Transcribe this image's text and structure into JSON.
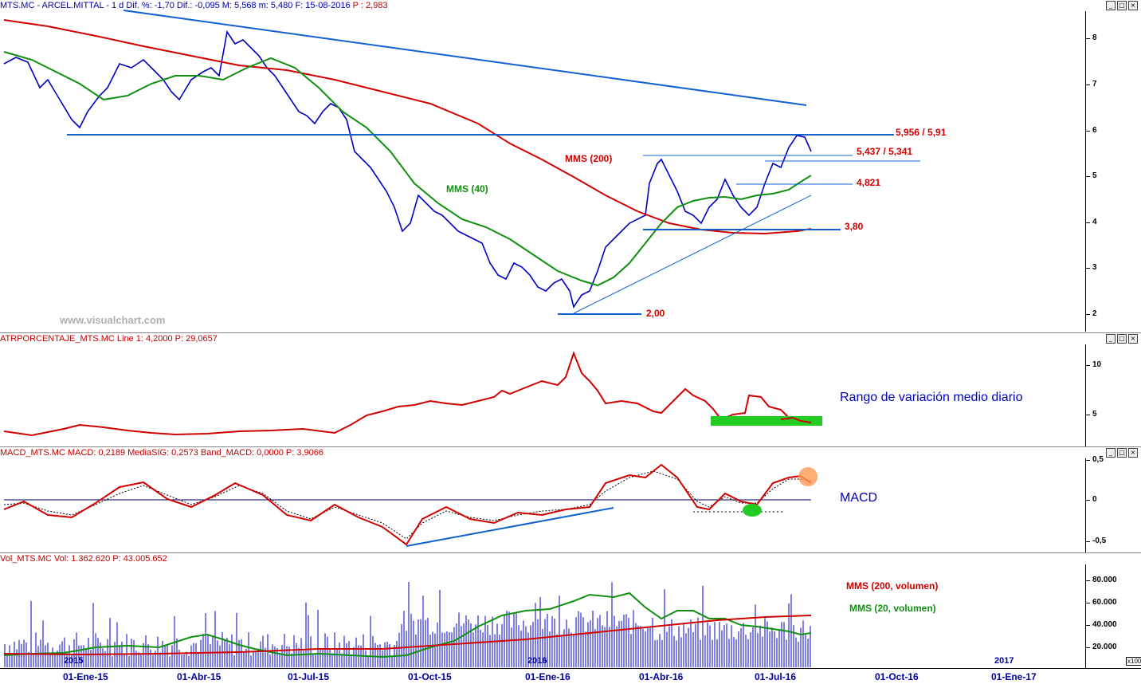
{
  "panels": {
    "price": {
      "header": {
        "symbol": "MTS.MC - ARCEL.MITTAL - 1 d",
        "stats": "Dif. %: -1,70  Dif.: -0,095  M: 5,568  m: 5,480  F: 15-08-2016",
        "extra": "P : 2,983"
      },
      "y_ticks": [
        "8",
        "7",
        "6",
        "5",
        "4",
        "3",
        "2"
      ],
      "watermark": "www.visualchart.com",
      "labels": {
        "mms200": "MMS (200)",
        "mms40": "MMS (40)",
        "level1": "5,956 / 5,91",
        "level2": "5,437 / 5,341",
        "level3": "4,821",
        "level4": "3,80",
        "level5": "2,00"
      }
    },
    "atr": {
      "header": "ATRPORCENTAJE_MTS.MC  Line 1: 4,2000  P: 29,0657",
      "y_ticks": [
        "10",
        "5"
      ],
      "annotation": "Rango de variación medio diario"
    },
    "macd": {
      "header": "MACD_MTS.MC  MACD: 0,2189  MediaSIG: 0,2573  Band_MACD: 0,0000  P: 3,9066",
      "y_ticks": [
        "0,5",
        "0",
        "-0,5"
      ],
      "annotation": "MACD"
    },
    "volume": {
      "header": "Vol_MTS.MC  Vol: 1.362.620  P: 43.005.652",
      "y_ticks": [
        "80.000",
        "60.000",
        "40.000",
        "20.000"
      ],
      "mult": "x100",
      "labels": {
        "mms200": "MMS (200, volumen)",
        "mms20": "MMS (20, volumen)"
      },
      "year_marks": [
        "2015",
        "2016",
        "2017"
      ]
    }
  },
  "x_axis": [
    "01-Ene-15",
    "01-Abr-15",
    "01-Jul-15",
    "01-Oct-15",
    "01-Ene-16",
    "01-Abr-16",
    "01-Jul-16",
    "01-Oct-16",
    "01-Ene-17"
  ],
  "colors": {
    "price": "#0000c0",
    "mms200": "#d00000",
    "mms40": "#109010",
    "trend": "#1060d0",
    "highlight": "#22cc22"
  },
  "chart_data": [
    {
      "type": "line",
      "x": [
        "2015-01-01",
        "2015-04-01",
        "2015-07-01",
        "2015-10-01",
        "2016-01-01",
        "2016-04-01",
        "2016-07-01",
        "2016-08-15"
      ],
      "series": [
        {
          "name": "MMS (200)",
          "values": [
            8.1,
            7.5,
            7.1,
            6.0,
            4.6,
            3.9,
            3.85,
            3.88
          ]
        },
        {
          "name": "MMS (40)",
          "values": [
            7.3,
            6.7,
            7.5,
            4.8,
            2.8,
            3.6,
            4.7,
            5.0
          ]
        }
      ],
      "ylim": [
        1.7,
        8.5
      ],
      "horizontal_levels": [
        5.956,
        5.91,
        5.437,
        5.341,
        4.821,
        3.8,
        2.0
      ]
    },
    {
      "type": "line",
      "x": [
        "2015-01-01",
        "2015-07-01",
        "2015-10-01",
        "2016-01-01",
        "2016-04-01",
        "2016-08-15"
      ],
      "series": [
        {
          "values": [
            3.5,
            3.0,
            6.5,
            9.5,
            6.0,
            4.2
          ]
        }
      ],
      "ylim": [
        2,
        12
      ]
    },
    {
      "type": "line",
      "x": [
        "2015-01-01",
        "2015-07-01",
        "2015-10-01",
        "2016-01-01",
        "2016-04-01",
        "2016-08-15"
      ],
      "series": [
        {
          "name": "MACD",
          "values": [
            0.0,
            -0.1,
            -0.55,
            -0.1,
            0.45,
            0.22
          ]
        },
        {
          "name": "MediaSIG",
          "values": [
            0.0,
            -0.08,
            -0.5,
            -0.12,
            0.4,
            0.26
          ]
        }
      ],
      "ylim": [
        -0.7,
        0.6
      ]
    },
    {
      "type": "bar",
      "series": [
        {
          "name": "MMS (200, volumen)",
          "values": [
            20000,
            20000,
            30000,
            45000,
            49000
          ]
        },
        {
          "name": "MMS (20, volumen)",
          "values": [
            20000,
            25000,
            45000,
            40000,
            32000
          ]
        }
      ],
      "ylim": [
        0,
        95000
      ]
    }
  ]
}
